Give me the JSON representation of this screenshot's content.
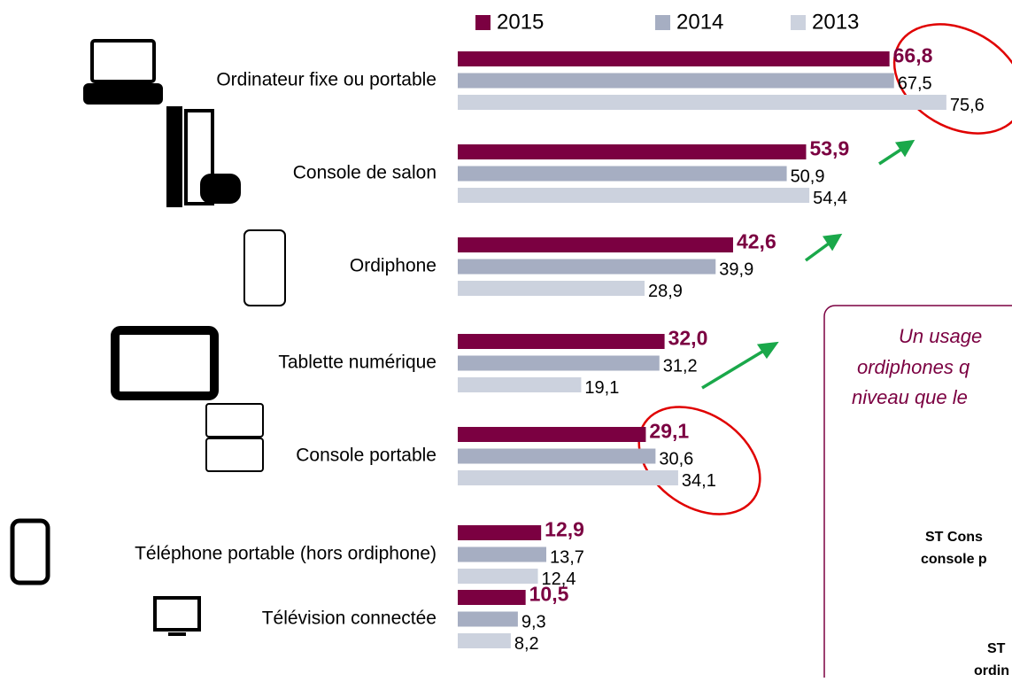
{
  "chart_data": {
    "type": "hbar",
    "categories": [
      "Ordinateur fixe ou portable",
      "Console de salon",
      "Ordiphone",
      "Tablette numérique",
      "Console portable",
      "Téléphone portable (hors ordiphone)",
      "Télévision connectée"
    ],
    "series": [
      {
        "name": "2015",
        "color": "#7b0041",
        "values": [
          66.8,
          53.9,
          42.6,
          32.0,
          29.1,
          12.9,
          10.5
        ],
        "value_labels": [
          "66,8",
          "53,9",
          "42,6",
          "32,0",
          "29,1",
          "12,9",
          "10,5"
        ]
      },
      {
        "name": "2014",
        "color": "#a6aec2",
        "values": [
          67.5,
          50.9,
          39.9,
          31.2,
          30.6,
          13.7,
          9.3
        ],
        "value_labels": [
          "67,5",
          "50,9",
          "39,9",
          "31,2",
          "30,6",
          "13,7",
          "9,3"
        ]
      },
      {
        "name": "2013",
        "color": "#ccd2de",
        "values": [
          75.6,
          54.4,
          28.9,
          19.1,
          34.1,
          12.4,
          8.2
        ],
        "value_labels": [
          "75,6",
          "54,4",
          "28,9",
          "19,1",
          "34,1",
          "12,4",
          "8,2"
        ]
      }
    ],
    "annotations": [
      "Un usage",
      "ordiphones q",
      "niveau que le",
      "ST Cons",
      "console p",
      "ST",
      "ordin"
    ]
  }
}
